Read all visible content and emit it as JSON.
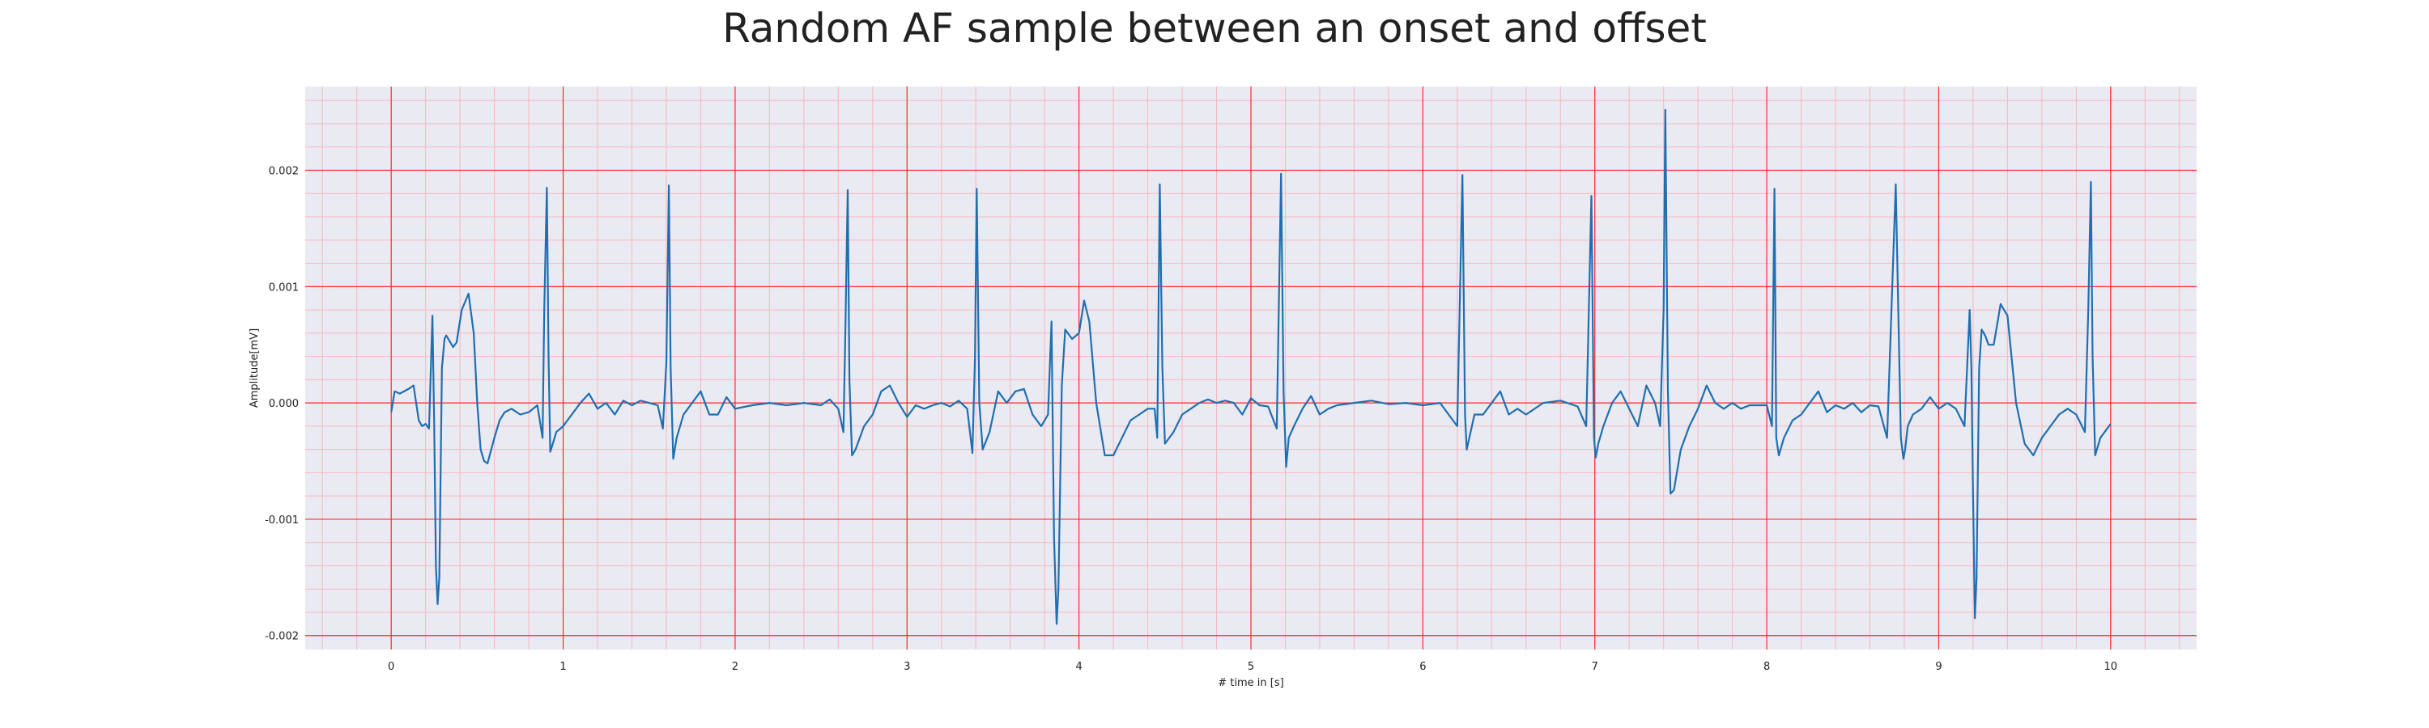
{
  "chart_data": {
    "type": "line",
    "title": "Random AF sample between an onset and offset",
    "xlabel": "# time in [s]",
    "ylabel": "Amplitude[mV]",
    "xlim": [
      -0.5,
      10.5
    ],
    "ylim": [
      -0.00212,
      0.00272
    ],
    "x_ticks": [
      0,
      1,
      2,
      3,
      4,
      5,
      6,
      7,
      8,
      9,
      10
    ],
    "x_tick_labels": [
      "0",
      "1",
      "2",
      "3",
      "4",
      "5",
      "6",
      "7",
      "8",
      "9",
      "10"
    ],
    "y_ticks": [
      -0.002,
      -0.001,
      0.0,
      0.001,
      0.002
    ],
    "y_tick_labels": [
      "-0.002",
      "-0.001",
      "0.000",
      "0.001",
      "0.002"
    ],
    "grid": true,
    "minor_grid": true,
    "background_color": "#eaeaf2",
    "major_grid_color": "#ff2a2a",
    "minor_grid_color": "#f7b6c0",
    "line_color": "#1f6fb0",
    "series": [
      {
        "x": [
          0.0,
          0.02,
          0.05,
          0.1,
          0.13,
          0.16,
          0.18,
          0.2,
          0.22,
          0.24,
          0.25,
          0.26,
          0.27,
          0.28,
          0.295,
          0.31,
          0.32,
          0.34,
          0.36,
          0.38,
          0.41,
          0.45,
          0.48,
          0.5,
          0.52,
          0.54,
          0.56,
          0.6,
          0.63,
          0.66,
          0.7,
          0.75,
          0.8,
          0.85,
          0.88,
          0.89,
          0.905,
          0.915,
          0.925,
          0.94,
          0.96,
          1.0,
          1.05,
          1.1,
          1.15,
          1.2,
          1.25,
          1.3,
          1.35,
          1.4,
          1.45,
          1.5,
          1.55,
          1.58,
          1.6,
          1.615,
          1.625,
          1.64,
          1.66,
          1.7,
          1.75,
          1.8,
          1.85,
          1.9,
          1.95,
          2.0,
          2.1,
          2.2,
          2.3,
          2.4,
          2.5,
          2.55,
          2.6,
          2.63,
          2.64,
          2.655,
          2.665,
          2.68,
          2.7,
          2.75,
          2.8,
          2.85,
          2.9,
          2.95,
          3.0,
          3.05,
          3.1,
          3.15,
          3.2,
          3.25,
          3.3,
          3.35,
          3.38,
          3.395,
          3.405,
          3.42,
          3.44,
          3.48,
          3.53,
          3.58,
          3.63,
          3.68,
          3.73,
          3.78,
          3.8,
          3.82,
          3.84,
          3.855,
          3.87,
          3.88,
          3.9,
          3.92,
          3.96,
          4.0,
          4.03,
          4.06,
          4.1,
          4.15,
          4.2,
          4.25,
          4.3,
          4.35,
          4.4,
          4.44,
          4.455,
          4.47,
          4.485,
          4.5,
          4.55,
          4.6,
          4.65,
          4.7,
          4.75,
          4.8,
          4.85,
          4.9,
          4.95,
          5.0,
          5.05,
          5.1,
          5.15,
          5.175,
          5.19,
          5.205,
          5.22,
          5.25,
          5.3,
          5.35,
          5.4,
          5.45,
          5.5,
          5.6,
          5.7,
          5.8,
          5.9,
          6.0,
          6.1,
          6.2,
          6.23,
          6.245,
          6.255,
          6.27,
          6.3,
          6.35,
          6.4,
          6.45,
          6.5,
          6.55,
          6.6,
          6.7,
          6.8,
          6.9,
          6.95,
          6.98,
          6.995,
          7.005,
          7.02,
          7.05,
          7.1,
          7.15,
          7.2,
          7.25,
          7.3,
          7.35,
          7.38,
          7.4,
          7.41,
          7.425,
          7.44,
          7.46,
          7.5,
          7.55,
          7.6,
          7.65,
          7.7,
          7.75,
          7.8,
          7.85,
          7.9,
          7.95,
          8.0,
          8.03,
          8.045,
          8.055,
          8.07,
          8.1,
          8.15,
          8.2,
          8.25,
          8.3,
          8.35,
          8.4,
          8.45,
          8.5,
          8.55,
          8.6,
          8.65,
          8.7,
          8.75,
          8.78,
          8.795,
          8.805,
          8.82,
          8.85,
          8.9,
          8.95,
          9.0,
          9.05,
          9.1,
          9.15,
          9.18,
          9.19,
          9.2,
          9.21,
          9.22,
          9.235,
          9.25,
          9.27,
          9.29,
          9.32,
          9.36,
          9.4,
          9.45,
          9.5,
          9.55,
          9.6,
          9.65,
          9.7,
          9.75,
          9.8,
          9.85,
          9.87,
          9.885,
          9.895,
          9.91,
          9.94,
          10.0
        ],
        "y": [
          -8e-05,
          0.0001,
          8e-05,
          0.00012,
          0.00015,
          -0.00015,
          -0.0002,
          -0.00018,
          -0.00022,
          0.00075,
          -0.0002,
          -0.0014,
          -0.00173,
          -0.0015,
          0.0003,
          0.00055,
          0.00058,
          0.00053,
          0.00048,
          0.00052,
          0.0008,
          0.00094,
          0.0006,
          0.0,
          -0.0004,
          -0.0005,
          -0.00052,
          -0.0003,
          -0.00015,
          -8e-05,
          -5e-05,
          -0.0001,
          -8e-05,
          -2e-05,
          -0.0003,
          0.0008,
          0.00185,
          0.0004,
          -0.00042,
          -0.00035,
          -0.00025,
          -0.0002,
          -0.0001,
          0.0,
          8e-05,
          -5e-05,
          0.0,
          -0.0001,
          2e-05,
          -2e-05,
          2e-05,
          0.0,
          -2e-05,
          -0.00022,
          0.00035,
          0.00187,
          0.0003,
          -0.00048,
          -0.0003,
          -0.0001,
          0.0,
          0.0001,
          -0.0001,
          -0.0001,
          5e-05,
          -5e-05,
          -2e-05,
          0.0,
          -2e-05,
          0.0,
          -2e-05,
          3e-05,
          -5e-05,
          -0.00025,
          0.0005,
          0.00183,
          0.0002,
          -0.00045,
          -0.0004,
          -0.0002,
          -0.0001,
          0.0001,
          0.00015,
          0.0,
          -0.00012,
          -2e-05,
          -5e-05,
          -2e-05,
          0.0,
          -3e-05,
          2e-05,
          -5e-05,
          -0.00043,
          0.0004,
          0.00184,
          0.0,
          -0.0004,
          -0.00025,
          0.0001,
          0.0,
          0.0001,
          0.00012,
          -0.0001,
          -0.0002,
          -0.00015,
          -0.0001,
          0.0007,
          -0.00115,
          -0.0019,
          -0.0016,
          0.00015,
          0.00063,
          0.00055,
          0.0006,
          0.00088,
          0.0007,
          0.0,
          -0.00045,
          -0.00045,
          -0.0003,
          -0.00015,
          -0.0001,
          -5e-05,
          -5e-05,
          -0.0003,
          0.00188,
          0.0003,
          -0.00035,
          -0.00025,
          -0.0001,
          -5e-05,
          0.0,
          3e-05,
          0.0,
          2e-05,
          0.0,
          -0.0001,
          4e-05,
          -2e-05,
          -3e-05,
          -0.00022,
          0.00197,
          0.0001,
          -0.00055,
          -0.0003,
          -0.0002,
          -5e-05,
          6e-05,
          -0.0001,
          -5e-05,
          -2e-05,
          0.0,
          2e-05,
          -1e-05,
          0.0,
          -2e-05,
          0.0,
          -0.0002,
          0.00196,
          -0.0001,
          -0.0004,
          -0.0003,
          -0.0001,
          -0.0001,
          0.0,
          0.0001,
          -0.0001,
          -5e-05,
          -0.0001,
          0.0,
          2e-05,
          -3e-05,
          -0.0002,
          0.00178,
          -0.0003,
          -0.00047,
          -0.00035,
          -0.0002,
          0.0,
          0.0001,
          -5e-05,
          -0.0002,
          0.00015,
          0.0,
          -0.0002,
          0.0008,
          0.00252,
          0.0001,
          -0.00078,
          -0.00075,
          -0.0004,
          -0.0002,
          -5e-05,
          0.00015,
          0.0,
          -5e-05,
          0.0,
          -5e-05,
          -2e-05,
          -2e-05,
          -2e-05,
          -0.0002,
          0.00184,
          -0.0003,
          -0.00045,
          -0.0003,
          -0.00015,
          -0.0001,
          0.0,
          0.0001,
          -8e-05,
          -2e-05,
          -5e-05,
          0.0,
          -8e-05,
          -2e-05,
          -3e-05,
          -0.0003,
          0.00188,
          -0.0003,
          -0.00048,
          -0.0004,
          -0.0002,
          -0.0001,
          -5e-05,
          5e-05,
          -5e-05,
          0.0,
          -5e-05,
          -0.0002,
          0.0008,
          0.0003,
          -0.0008,
          -0.00185,
          -0.0015,
          0.0003,
          0.00063,
          0.00058,
          0.0005,
          0.0005,
          0.00085,
          0.00075,
          0.0,
          -0.00035,
          -0.00045,
          -0.0003,
          -0.0002,
          -0.0001,
          -5e-05,
          -0.0001,
          -0.00025,
          0.0008,
          0.0019,
          0.0004,
          -0.00045,
          -0.0003,
          -0.00018
        ]
      }
    ]
  }
}
